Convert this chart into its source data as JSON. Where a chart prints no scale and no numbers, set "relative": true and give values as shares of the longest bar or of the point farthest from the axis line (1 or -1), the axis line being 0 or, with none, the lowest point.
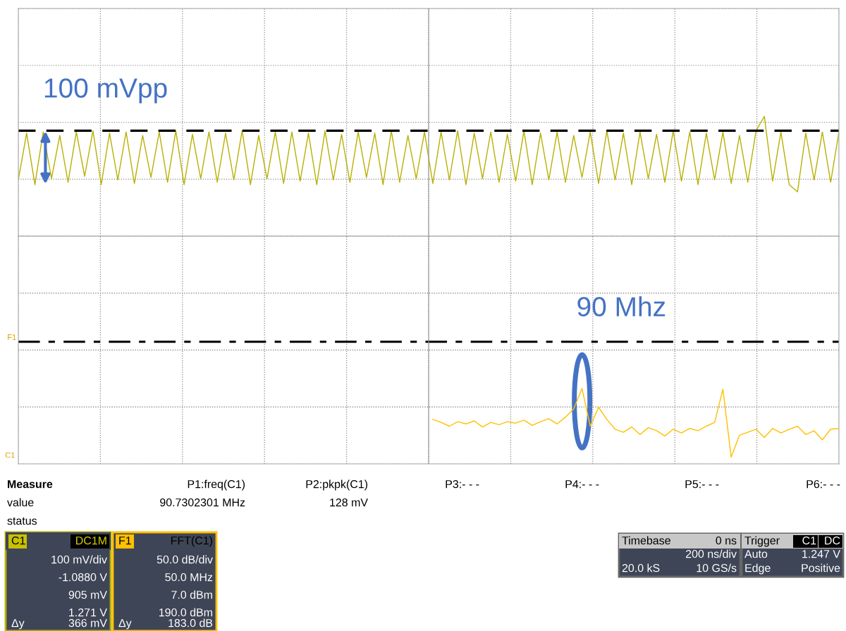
{
  "chart_data": [
    {
      "type": "line",
      "relative": true,
      "grid": true,
      "tick_labels": false,
      "line_style": "solid",
      "categories": [
        null,
        null,
        null,
        null,
        null,
        null,
        null,
        null,
        null,
        null,
        null,
        null,
        null,
        null,
        null,
        null,
        null,
        null,
        null,
        null,
        null,
        null,
        null,
        null,
        null,
        null,
        null,
        null,
        null,
        null,
        null,
        null,
        null,
        null,
        null,
        null,
        null,
        null,
        null,
        null,
        null,
        null,
        null,
        null,
        null,
        null,
        null,
        null,
        null,
        null,
        null,
        null,
        null,
        null,
        null,
        null,
        null,
        null,
        null,
        null,
        null,
        null,
        null,
        null,
        null,
        null,
        null,
        null,
        null,
        null,
        null,
        null,
        null,
        null,
        null,
        null,
        null,
        null,
        null,
        null,
        null,
        null,
        null,
        null,
        null,
        null,
        null,
        null,
        null,
        null,
        null,
        null,
        null,
        null,
        null,
        null,
        null,
        null,
        null,
        null
      ],
      "series": [
        {
          "color": "#b8b000",
          "values": [
            0.47,
            0.86,
            0.43,
            0.87,
            0.48,
            0.84,
            0.45,
            0.87,
            0.5,
            0.88,
            0.43,
            0.86,
            0.47,
            0.87,
            0.44,
            0.84,
            0.49,
            0.87,
            0.45,
            0.88,
            0.43,
            0.85,
            0.48,
            0.87,
            0.45,
            0.86,
            0.47,
            0.88,
            0.43,
            0.84,
            0.48,
            0.87,
            0.44,
            0.87,
            0.46,
            0.86,
            0.43,
            0.88,
            0.47,
            0.85,
            0.45,
            0.87,
            0.49,
            0.86,
            0.43,
            0.88,
            0.45,
            0.84,
            0.48,
            0.87,
            0.44,
            0.87,
            0.47,
            0.88,
            0.43,
            0.86,
            0.48,
            0.87,
            0.45,
            0.85,
            0.46,
            0.88,
            0.43,
            0.86,
            0.47,
            0.87,
            0.45,
            0.84,
            0.49,
            0.87,
            0.44,
            0.88,
            0.47,
            0.86,
            0.43,
            0.87,
            0.48,
            0.85,
            0.45,
            0.88,
            0.46,
            0.87,
            0.43,
            0.86,
            0.47,
            0.87,
            0.44,
            0.84,
            0.45,
            0.88,
            1.0,
            0.46,
            0.87,
            0.43,
            0.37,
            0.86,
            0.47,
            0.87,
            0.45,
            0.87
          ]
        }
      ],
      "ref_lines": [
        {
          "axis": "y",
          "value": 0.88,
          "color": "#000000",
          "line_style": "dashed"
        }
      ],
      "annotations": [
        "100 mVpp"
      ]
    },
    {
      "type": "line",
      "relative": true,
      "grid": true,
      "tick_labels": false,
      "line_style": "solid",
      "categories": [
        null,
        null,
        null,
        null,
        null,
        null,
        null,
        null,
        null,
        null,
        null,
        null,
        null,
        null,
        null,
        null,
        null,
        null,
        null,
        null,
        null,
        null,
        null,
        null,
        null,
        null,
        null,
        null,
        null,
        null,
        null,
        null,
        null,
        null,
        null,
        null,
        null,
        null,
        null,
        null,
        null,
        null,
        null,
        null,
        null,
        null,
        null,
        null,
        null,
        null,
        null,
        null,
        null,
        null,
        null,
        null,
        null,
        null,
        null,
        null,
        null,
        null,
        null,
        null,
        null,
        null,
        null,
        null,
        null,
        null,
        null,
        null,
        null,
        null,
        null,
        null,
        null,
        null,
        null,
        null,
        null,
        null,
        null,
        null,
        null,
        null,
        null,
        null,
        null,
        null,
        null,
        null,
        null,
        null,
        null,
        null,
        null,
        null,
        null,
        null
      ],
      "series": [
        {
          "color": "#ffc000",
          "values": [
            null,
            null,
            null,
            null,
            null,
            null,
            null,
            null,
            null,
            null,
            null,
            null,
            null,
            null,
            null,
            null,
            null,
            null,
            null,
            null,
            null,
            null,
            null,
            null,
            null,
            null,
            null,
            null,
            null,
            null,
            null,
            null,
            null,
            null,
            null,
            null,
            null,
            null,
            null,
            null,
            null,
            null,
            null,
            null,
            null,
            null,
            null,
            null,
            null,
            null,
            0.59,
            0.55,
            0.5,
            0.56,
            0.53,
            0.57,
            0.49,
            0.55,
            0.52,
            0.56,
            0.54,
            0.58,
            0.51,
            0.56,
            0.6,
            0.53,
            0.62,
            0.73,
            1.0,
            0.5,
            0.75,
            0.59,
            0.46,
            0.42,
            0.49,
            0.39,
            0.48,
            0.44,
            0.37,
            0.46,
            0.41,
            0.47,
            0.44,
            0.5,
            0.55,
            0.99,
            0.09,
            0.38,
            0.42,
            0.46,
            0.35,
            0.47,
            0.41,
            0.46,
            0.5,
            0.39,
            0.44,
            0.32,
            0.46,
            0.47
          ]
        }
      ],
      "ref_lines": [
        {
          "axis": "y",
          "value": 1.62,
          "color": "#000000",
          "line_style": "dashdot",
          "label": "F1"
        }
      ],
      "annotations": [
        "90 Mhz",
        "C1"
      ]
    },
    {
      "type": "other",
      "annotations": [
        "Measure",
        "P1:freq(C1)",
        "P2:pkpk(C1)",
        "P3:- - -",
        "P4:- - -",
        "P5:- - -",
        "P6:- - -",
        "value",
        "90.7302301 MHz",
        "128 mV",
        "status",
        "C1",
        "DC1M",
        "100 mV/div",
        "-1.0880 V",
        "905 mV",
        "1.271 V",
        "Δy",
        "366 mV",
        "F1",
        "FFT(C1)",
        "50.0 dB/div",
        "50.0 MHz",
        "7.0 dBm",
        "190.0 dBm",
        "Δy",
        "183.0 dB",
        "Timebase",
        "0 ns",
        "200 ns/div",
        "20.0 kS",
        "10 GS/s",
        "Trigger",
        "C1",
        "DC",
        "Auto",
        "1.247 V",
        "Edge",
        "Positive"
      ]
    }
  ]
}
